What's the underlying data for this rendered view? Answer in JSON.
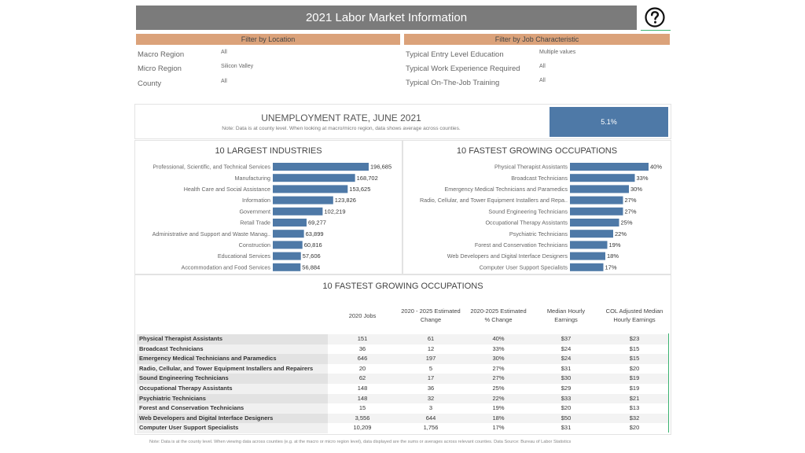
{
  "header": {
    "title": "2021 Labor Market Information"
  },
  "filters": {
    "location": {
      "title": "Filter by Location",
      "rows": [
        {
          "label": "Macro Region",
          "value": "All"
        },
        {
          "label": "Micro Region",
          "value": "Silicon Valley"
        },
        {
          "label": "County",
          "value": "All"
        }
      ]
    },
    "job": {
      "title": "Filter by Job Characteristic",
      "rows": [
        {
          "label": "Typical Entry Level Education",
          "value": "Multiple values"
        },
        {
          "label": "Typical Work Experience Required",
          "value": "All"
        },
        {
          "label": "Typical On-The-Job Training",
          "value": "All"
        }
      ]
    }
  },
  "unemployment": {
    "title": "UNEMPLOYMENT RATE, JUNE 2021",
    "note": "Note: Data is at county level.  When looking at macro/micro region, data shows average across counties.",
    "value": "5.1%"
  },
  "colors": {
    "bar": "#4e79a7",
    "accent": "#dba27a",
    "header_bg": "#7b7b7b"
  },
  "chart_data": [
    {
      "type": "bar",
      "orientation": "horizontal",
      "title": "10 LARGEST INDUSTRIES",
      "categories": [
        "Professional, Scientific, and Technical Services",
        "Manufacturing",
        "Health Care and Social Assistance",
        "Information",
        "Government",
        "Retail Trade",
        "Administrative and Support and Waste Manag..",
        "Construction",
        "Educational Services",
        "Accommodation and Food Services"
      ],
      "values": [
        196685,
        168702,
        153625,
        123826,
        102219,
        69277,
        63899,
        60816,
        57606,
        56884
      ],
      "labels": [
        "196,685",
        "168,702",
        "153,625",
        "123,826",
        "102,219",
        "69,277",
        "63,899",
        "60,816",
        "57,606",
        "56,884"
      ],
      "xlim": [
        0,
        196685
      ]
    },
    {
      "type": "bar",
      "orientation": "horizontal",
      "title": "10 FASTEST GROWING OCCUPATIONS",
      "categories": [
        "Physical Therapist Assistants",
        "Broadcast Technicians",
        "Emergency Medical Technicians and Paramedics",
        "Radio, Cellular, and Tower Equipment Installers and Repa..",
        "Sound Engineering Technicians",
        "Occupational Therapy Assistants",
        "Psychiatric Technicians",
        "Forest and Conservation Technicians",
        "Web Developers and Digital Interface Designers",
        "Computer User Support Specialists"
      ],
      "values": [
        40,
        33,
        30,
        27,
        27,
        25,
        22,
        19,
        18,
        17
      ],
      "labels": [
        "40%",
        "33%",
        "30%",
        "27%",
        "27%",
        "25%",
        "22%",
        "19%",
        "18%",
        "17%"
      ],
      "xlim": [
        0,
        40
      ]
    }
  ],
  "table": {
    "title": "10 FASTEST GROWING OCCUPATIONS",
    "headers": [
      [
        "2020 Jobs",
        ""
      ],
      [
        "2020 - 2025 Estimated",
        "Change"
      ],
      [
        "2020-2025 Estimated",
        "% Change"
      ],
      [
        "Median Hourly",
        "Earnings"
      ],
      [
        "COL Adjusted Median",
        "Hourly Earnings"
      ]
    ],
    "rows": [
      [
        "Physical Therapist Assistants",
        "151",
        "61",
        "40%",
        "$37",
        "$23"
      ],
      [
        "Broadcast Technicians",
        "36",
        "12",
        "33%",
        "$24",
        "$15"
      ],
      [
        "Emergency Medical Technicians and Paramedics",
        "646",
        "197",
        "30%",
        "$24",
        "$15"
      ],
      [
        "Radio, Cellular, and Tower Equipment Installers and Repairers",
        "20",
        "5",
        "27%",
        "$31",
        "$20"
      ],
      [
        "Sound Engineering Technicians",
        "62",
        "17",
        "27%",
        "$30",
        "$19"
      ],
      [
        "Occupational Therapy Assistants",
        "148",
        "36",
        "25%",
        "$29",
        "$19"
      ],
      [
        "Psychiatric Technicians",
        "148",
        "32",
        "22%",
        "$33",
        "$21"
      ],
      [
        "Forest and Conservation Technicians",
        "15",
        "3",
        "19%",
        "$20",
        "$13"
      ],
      [
        "Web Developers and Digital Interface Designers",
        "3,556",
        "644",
        "18%",
        "$50",
        "$32"
      ],
      [
        "Computer User Support Specialists",
        "10,209",
        "1,756",
        "17%",
        "$31",
        "$20"
      ]
    ]
  },
  "footnote": "Note: Data is at the county level.  When viewing data across counties (e.g. at the macro or micro region level), data displayed are the sums or averages across relevant counties.  Data Source: Bureau of Labor Statistics"
}
